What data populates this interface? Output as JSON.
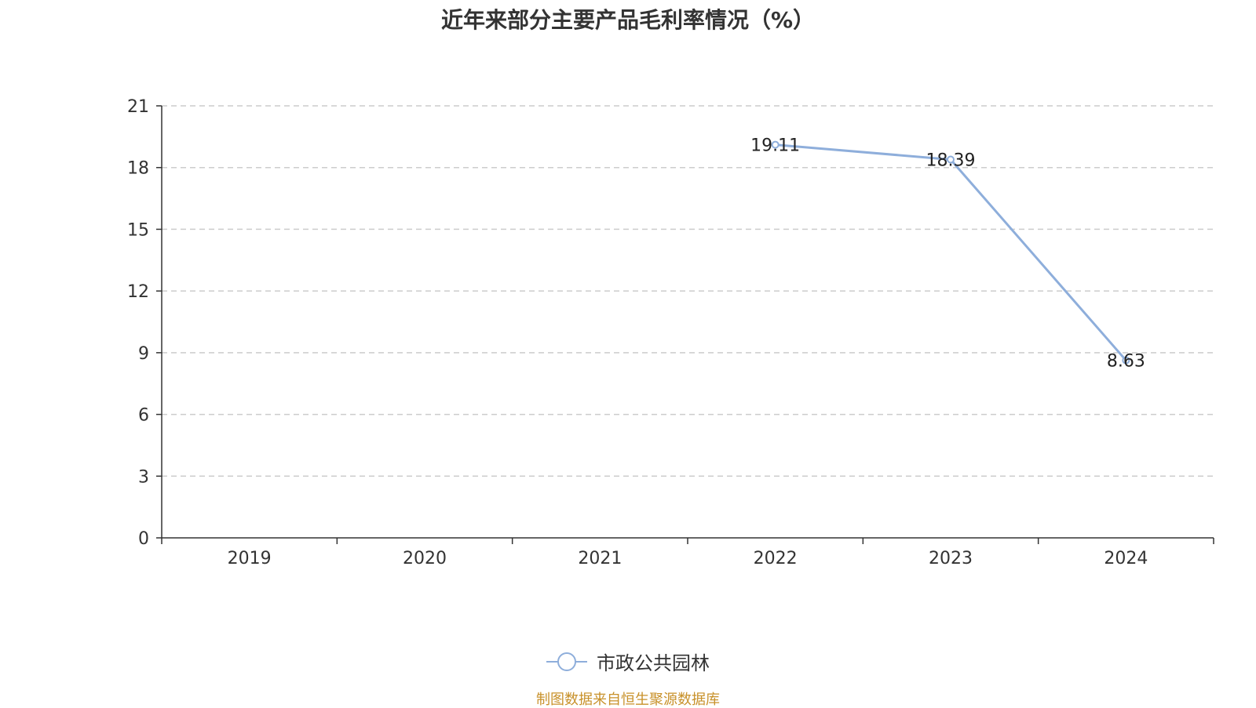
{
  "chart_data": {
    "type": "line",
    "title": "近年来部分主要产品毛利率情况（%）",
    "xlabel": "",
    "ylabel": "",
    "categories": [
      "2019",
      "2020",
      "2021",
      "2022",
      "2023",
      "2024"
    ],
    "ylim": [
      0,
      21
    ],
    "yticks": [
      0,
      3,
      6,
      9,
      12,
      15,
      18,
      21
    ],
    "grid": true,
    "legend_position": "bottom",
    "series": [
      {
        "name": "市政公共园林",
        "values": [
          null,
          null,
          null,
          19.11,
          18.39,
          8.63
        ],
        "labels": [
          "",
          "",
          "",
          "19.11",
          "18.39",
          "8.63"
        ],
        "color": "#8eaedb"
      }
    ]
  },
  "footer": {
    "source": "制图数据来自恒生聚源数据库",
    "source_color": "#c8912a"
  }
}
